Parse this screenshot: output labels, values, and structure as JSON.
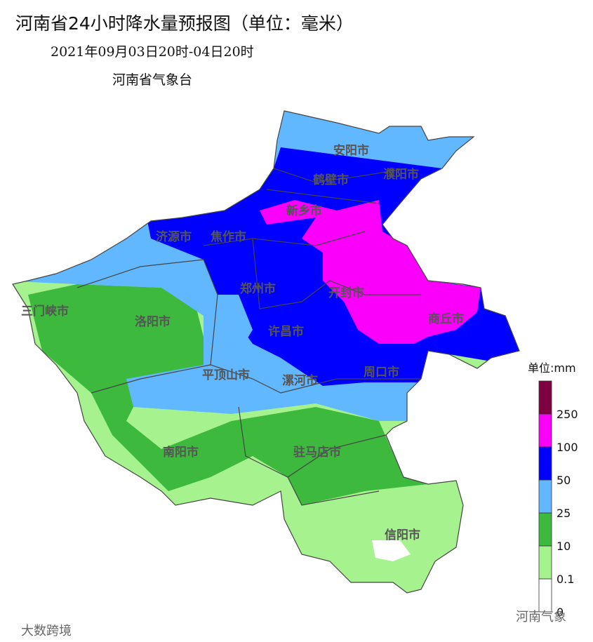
{
  "header": {
    "title": "河南省24小时降水量预报图（单位：毫米）",
    "period": "2021年09月03日20时-04日20时",
    "source": "河南省气象台"
  },
  "cities": [
    "安阳市",
    "鹤壁市",
    "濮阳市",
    "新乡市",
    "济源市",
    "焦作市",
    "郑州市",
    "开封市",
    "三门峡市",
    "洛阳市",
    "许昌市",
    "商丘市",
    "平顶山市",
    "漯河市",
    "周口市",
    "南阳市",
    "驻马店市",
    "信阳市"
  ],
  "legend": {
    "unit": "单位:mm",
    "colors": [
      "#ffffff",
      "#a6f28f",
      "#3dba3d",
      "#61b8ff",
      "#0000fe",
      "#fa00fa",
      "#7f0040"
    ],
    "ticks": [
      0,
      0.1,
      10,
      25,
      50,
      100,
      250
    ]
  },
  "watermarks": [
    "大数跨境",
    "河南气象"
  ]
}
